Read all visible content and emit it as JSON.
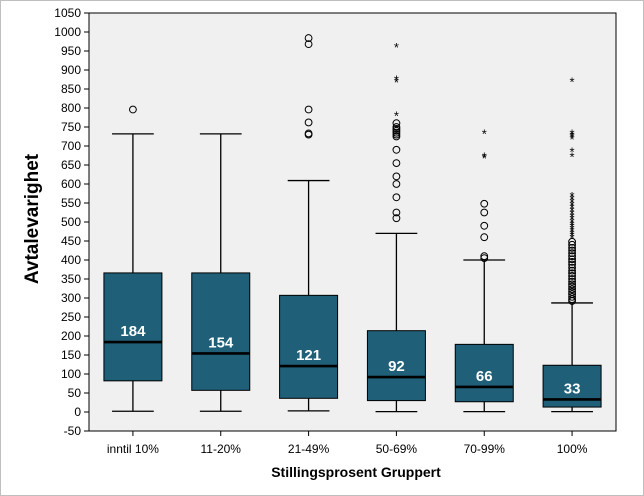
{
  "chart_data": {
    "type": "boxplot",
    "xlabel": "Stillingsprosent Gruppert",
    "ylabel": "Avtalevarighet",
    "ylim": [
      -50,
      1050
    ],
    "yticks": [
      -50,
      0,
      50,
      100,
      150,
      200,
      250,
      300,
      350,
      400,
      450,
      500,
      550,
      600,
      650,
      700,
      750,
      800,
      850,
      900,
      950,
      1000,
      1050
    ],
    "categories": [
      "inntil 10%",
      "11-20%",
      "21-49%",
      "50-69%",
      "70-99%",
      "100%"
    ],
    "box_color": "#1f5f78",
    "plot_background": "#f0f0f0",
    "boxes": [
      {
        "category": "inntil 10%",
        "median": 184,
        "median_label": "184",
        "q1": 82,
        "q3": 366,
        "whisker_low": 2,
        "whisker_high": 732,
        "outliers": [
          796
        ],
        "extremes": []
      },
      {
        "category": "11-20%",
        "median": 154,
        "median_label": "154",
        "q1": 57,
        "q3": 366,
        "whisker_low": 2,
        "whisker_high": 732,
        "outliers": [],
        "extremes": []
      },
      {
        "category": "21-49%",
        "median": 121,
        "median_label": "121",
        "q1": 36,
        "q3": 307,
        "whisker_low": 3,
        "whisker_high": 609,
        "outliers": [
          984,
          968,
          796,
          762,
          733,
          730
        ],
        "extremes": []
      },
      {
        "category": "50-69%",
        "median": 92,
        "median_label": "92",
        "q1": 30,
        "q3": 214,
        "whisker_low": 1,
        "whisker_high": 470,
        "outliers": [
          760,
          750,
          745,
          740,
          735,
          730,
          725,
          690,
          655,
          620,
          600,
          565,
          525,
          510
        ],
        "extremes": [
          960,
          875,
          868,
          780
        ]
      },
      {
        "category": "70-99%",
        "median": 66,
        "median_label": "66",
        "q1": 27,
        "q3": 178,
        "whisker_low": 1,
        "whisker_high": 400,
        "outliers": [
          548,
          525,
          490,
          460,
          410,
          405
        ],
        "extremes": [
          733,
          672,
          668
        ]
      },
      {
        "category": "100%",
        "median": 33,
        "median_label": "33",
        "q1": 13,
        "q3": 123,
        "whisker_low": 1,
        "whisker_high": 287,
        "outliers": [
          448,
          440,
          432,
          425,
          418,
          410,
          402,
          395,
          388,
          380,
          372,
          365,
          358,
          350,
          343,
          336,
          330,
          323,
          316,
          310,
          303,
          297,
          292
        ],
        "extremes": [
          870,
          733,
          728,
          724,
          718,
          685,
          672,
          568,
          560,
          552,
          545,
          538,
          530,
          522,
          515,
          508,
          500,
          494,
          488,
          482,
          476,
          470,
          464,
          458
        ]
      }
    ]
  }
}
